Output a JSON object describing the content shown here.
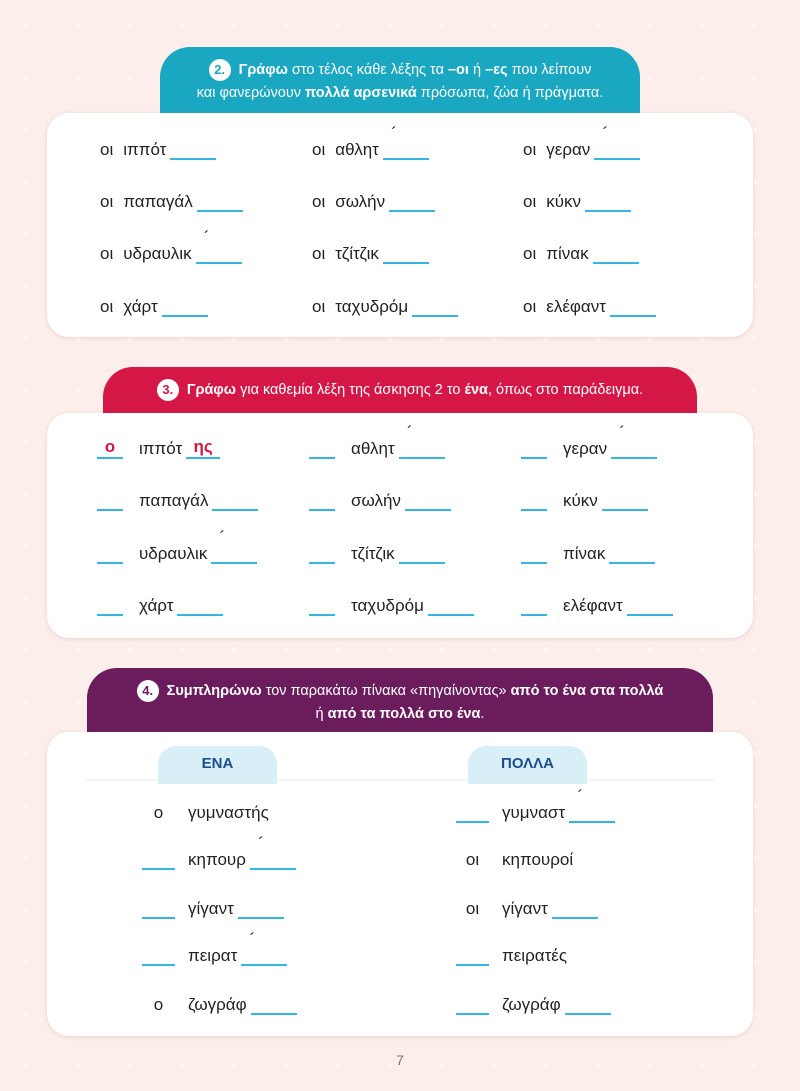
{
  "exercises": [
    {
      "number": "2.",
      "instruction": [
        [
          {
            "text": "Γράφω",
            "bold": true
          },
          {
            "text": " στο τέλος κάθε λέξης τα "
          },
          {
            "text": "–οι",
            "bold": true
          },
          {
            "text": " ή "
          },
          {
            "text": "–ες",
            "bold": true
          },
          {
            "text": " που λείπουν"
          }
        ],
        [
          {
            "text": "και φανερώνουν "
          },
          {
            "text": "πολλά αρσενικά",
            "bold": true
          },
          {
            "text": " πρόσωπα, ζώα ή πράγματα."
          }
        ]
      ],
      "items": [
        {
          "article": "οι",
          "word": "ιππότ",
          "blank": true
        },
        {
          "article": "οι",
          "word": "αθλητ",
          "accent": "´",
          "blank": true
        },
        {
          "article": "οι",
          "word": "γεραν",
          "accent": "´",
          "blank": true
        },
        {
          "article": "οι",
          "word": "παπαγάλ",
          "blank": true
        },
        {
          "article": "οι",
          "word": "σωλήν",
          "blank": true
        },
        {
          "article": "οι",
          "word": "κύκν",
          "blank": true
        },
        {
          "article": "οι",
          "word": "υδραυλικ",
          "accent": "´",
          "blank": true
        },
        {
          "article": "οι",
          "word": "τζίτζικ",
          "blank": true
        },
        {
          "article": "οι",
          "word": "πίνακ",
          "blank": true
        },
        {
          "article": "οι",
          "word": "χάρτ",
          "blank": true
        },
        {
          "article": "οι",
          "word": "ταχυδρόμ",
          "blank": true
        },
        {
          "article": "οι",
          "word": "ελέφαντ",
          "blank": true
        }
      ]
    },
    {
      "number": "3.",
      "instruction": [
        [
          {
            "text": "Γράφω",
            "bold": true
          },
          {
            "text": " για καθεμία λέξη της άσκησης 2 το "
          },
          {
            "text": "ένα",
            "bold": true
          },
          {
            "text": ", όπως στο παράδειγμα."
          }
        ]
      ],
      "items": [
        {
          "answer_article": "ο",
          "word": "ιππότ",
          "blank": true,
          "answer_ending": "ης"
        },
        {
          "word": "αθλητ",
          "accent": "´",
          "blank": true
        },
        {
          "word": "γεραν",
          "accent": "´",
          "blank": true
        },
        {
          "word": "παπαγάλ",
          "blank": true
        },
        {
          "word": "σωλήν",
          "blank": true
        },
        {
          "word": "κύκν",
          "blank": true
        },
        {
          "word": "υδραυλικ",
          "accent": "´",
          "blank": true
        },
        {
          "word": "τζίτζικ",
          "blank": true
        },
        {
          "word": "πίνακ",
          "blank": true
        },
        {
          "word": "χάρτ",
          "blank": true
        },
        {
          "word": "ταχυδρόμ",
          "blank": true
        },
        {
          "word": "ελέφαντ",
          "blank": true
        }
      ]
    },
    {
      "number": "4.",
      "instruction": [
        [
          {
            "text": "Συμπληρώνω",
            "bold": true
          },
          {
            "text": " τον παρακάτω πίνακα «πηγαίνοντας» "
          },
          {
            "text": "από το ένα στα πολλά",
            "bold": true
          }
        ],
        [
          {
            "text": "ή "
          },
          {
            "text": "από τα πολλά στο ένα",
            "bold": true
          },
          {
            "text": "."
          }
        ]
      ],
      "columns": [
        "ΕΝΑ",
        "ΠΟΛΛΑ"
      ],
      "rows": [
        [
          {
            "article": "ο",
            "word": "γυμναστής"
          },
          {
            "word": "γυμναστ",
            "accent": "´",
            "blank": true
          }
        ],
        [
          {
            "word": "κηπουρ",
            "accent": "´",
            "blank": true
          },
          {
            "article": "οι",
            "word": "κηπουροί"
          }
        ],
        [
          {
            "word": "γίγαντ",
            "blank": true
          },
          {
            "article": "οι",
            "word": "γίγαντ",
            "blank": true
          }
        ],
        [
          {
            "word": "πειρατ",
            "accent": "´",
            "blank": true
          },
          {
            "word": "πειρατές"
          }
        ],
        [
          {
            "article": "ο",
            "word": "ζωγράφ",
            "blank": true
          },
          {
            "word": "ζωγράφ",
            "blank": true
          }
        ]
      ]
    }
  ],
  "page_number": "7"
}
